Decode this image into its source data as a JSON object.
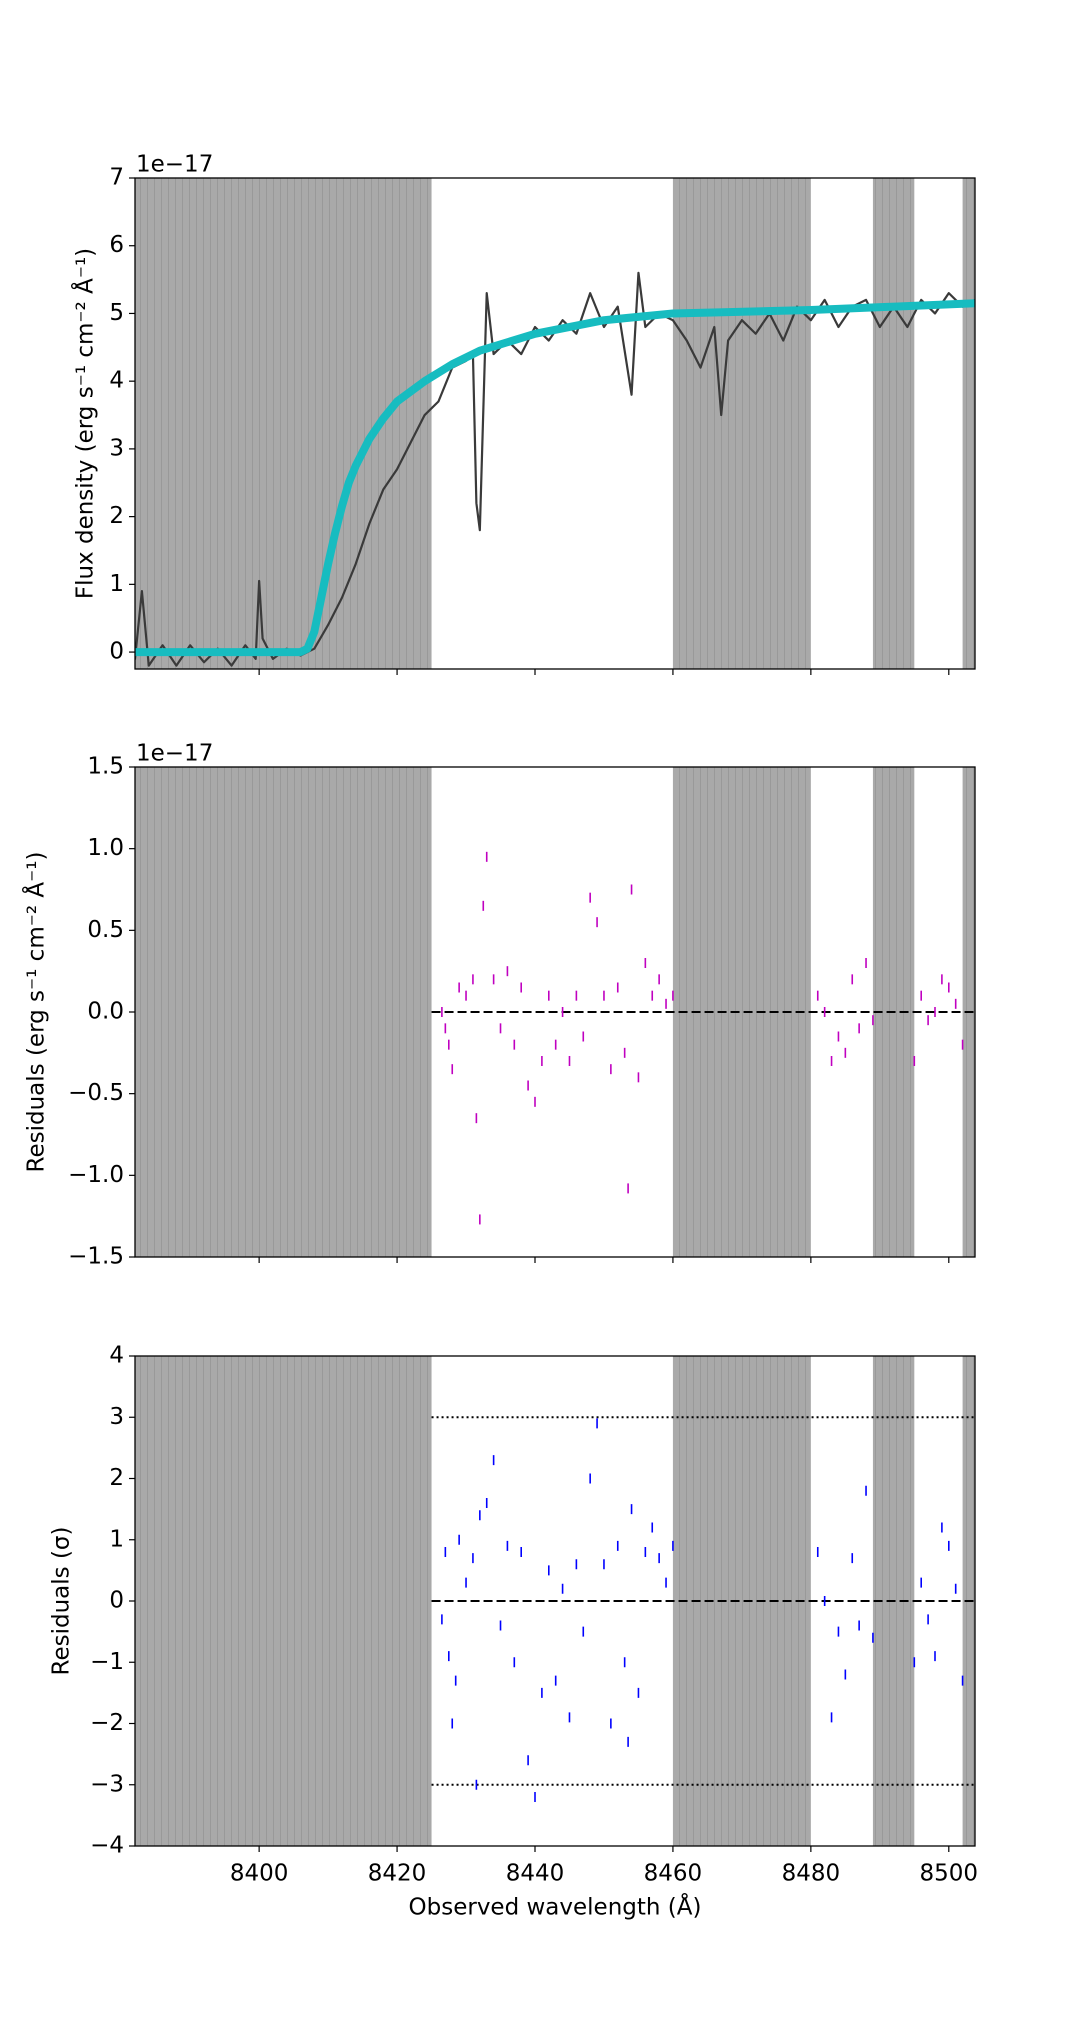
{
  "chart_data": [
    {
      "type": "line",
      "offset_label": "1e−17",
      "ylabel": "Flux density (erg s⁻¹ cm⁻² Å⁻¹)",
      "xlim": [
        8382,
        8503.8
      ],
      "xticks": [
        8400,
        8420,
        8440,
        8460,
        8480,
        8500
      ],
      "ylim": [
        -0.25,
        7
      ],
      "yticks": [
        0,
        1,
        2,
        3,
        4,
        5,
        6,
        7
      ],
      "masked_regions": [
        [
          8382,
          8425
        ],
        [
          8460,
          8480
        ],
        [
          8489,
          8495
        ],
        [
          8502,
          8503.8
        ]
      ],
      "series": [
        {
          "color": "#3a3a3a",
          "x": [
            8382,
            8383,
            8384,
            8386,
            8388,
            8390,
            8392,
            8394,
            8396,
            8398,
            8399.5,
            8400,
            8400.5,
            8402,
            8404,
            8406,
            8408,
            8410,
            8412,
            8414,
            8416,
            8418,
            8420,
            8422,
            8424,
            8426,
            8428,
            8430,
            8431,
            8431.5,
            8432,
            8433,
            8434,
            8436,
            8438,
            8440,
            8442,
            8444,
            8446,
            8448,
            8450,
            8452,
            8454,
            8455,
            8456,
            8458,
            8460,
            8462,
            8464,
            8466,
            8467,
            8468,
            8470,
            8472,
            8474,
            8476,
            8478,
            8480,
            8482,
            8484,
            8486,
            8488,
            8490,
            8492,
            8494,
            8496,
            8498,
            8500,
            8502,
            8503.8
          ],
          "values": [
            -0.1,
            0.9,
            -0.2,
            0.1,
            -0.2,
            0.1,
            -0.15,
            0.05,
            -0.2,
            0.1,
            -0.1,
            1.05,
            0.2,
            -0.1,
            0.05,
            -0.05,
            0.05,
            0.4,
            0.8,
            1.3,
            1.9,
            2.4,
            2.7,
            3.1,
            3.5,
            3.7,
            4.2,
            4.3,
            4.4,
            2.2,
            1.8,
            5.3,
            4.4,
            4.6,
            4.4,
            4.8,
            4.6,
            4.9,
            4.7,
            5.3,
            4.8,
            5.1,
            3.8,
            5.6,
            4.8,
            5.0,
            4.9,
            4.6,
            4.2,
            4.8,
            3.5,
            4.6,
            4.9,
            4.7,
            5.0,
            4.6,
            5.1,
            4.9,
            5.2,
            4.8,
            5.1,
            5.2,
            4.8,
            5.1,
            4.8,
            5.2,
            5.0,
            5.3,
            5.1,
            5.2
          ]
        },
        {
          "color": "#17bcc0",
          "x": [
            8382,
            8406,
            8407,
            8408,
            8409,
            8410,
            8411,
            8412,
            8413,
            8414,
            8416,
            8418,
            8420,
            8424,
            8428,
            8432,
            8440,
            8450,
            8460,
            8480,
            8503.8
          ],
          "values": [
            0,
            0,
            0.05,
            0.3,
            0.8,
            1.3,
            1.75,
            2.15,
            2.5,
            2.75,
            3.15,
            3.45,
            3.7,
            4.0,
            4.25,
            4.45,
            4.7,
            4.9,
            5.0,
            5.05,
            5.15
          ]
        }
      ]
    },
    {
      "type": "scatter",
      "offset_label": "1e−17",
      "ylabel": "Residuals (erg s⁻¹ cm⁻² Å⁻¹)",
      "xlim": [
        8382,
        8503.8
      ],
      "xticks": [
        8400,
        8420,
        8440,
        8460,
        8480,
        8500
      ],
      "ylim": [
        -1.5,
        1.5
      ],
      "yticks": [
        {
          "value": -1.5,
          "label": "−1.5"
        },
        {
          "value": -1,
          "label": "−1.0"
        },
        {
          "value": -0.5,
          "label": "−0.5"
        },
        {
          "value": 0,
          "label": "0.0"
        },
        0.5,
        {
          "value": 1,
          "label": "1.0"
        },
        1.5
      ],
      "masked_regions": [
        [
          8382,
          8425
        ],
        [
          8460,
          8480
        ],
        [
          8489,
          8495
        ],
        [
          8502,
          8503.8
        ]
      ],
      "hlines": [
        {
          "y": 0,
          "style": "dashed"
        }
      ],
      "series": [
        {
          "color": "#c000c0",
          "x": [
            8426.5,
            8427,
            8427.5,
            8428,
            8429,
            8430,
            8431,
            8431.5,
            8432,
            8432.5,
            8433,
            8434,
            8435,
            8436,
            8437,
            8438,
            8439,
            8440,
            8441,
            8442,
            8443,
            8444,
            8445,
            8446,
            8447,
            8448,
            8449,
            8450,
            8451,
            8452,
            8453,
            8453.5,
            8454,
            8455,
            8456,
            8457,
            8458,
            8459,
            8460,
            8481,
            8482,
            8483,
            8484,
            8485,
            8486,
            8487,
            8488,
            8489,
            8495,
            8496,
            8497,
            8498,
            8499,
            8500,
            8501,
            8502
          ],
          "values": [
            0.0,
            -0.1,
            -0.2,
            -0.35,
            0.15,
            0.1,
            0.2,
            -0.65,
            -1.27,
            0.65,
            0.95,
            0.2,
            -0.1,
            0.25,
            -0.2,
            0.15,
            -0.45,
            -0.55,
            -0.3,
            0.1,
            -0.2,
            0.0,
            -0.3,
            0.1,
            -0.15,
            0.7,
            0.55,
            0.1,
            -0.35,
            0.15,
            -0.25,
            -1.08,
            0.75,
            -0.4,
            0.3,
            0.1,
            0.2,
            0.05,
            0.1,
            0.1,
            0.0,
            -0.3,
            -0.15,
            -0.25,
            0.2,
            -0.1,
            0.3,
            -0.05,
            -0.3,
            0.1,
            -0.05,
            0.0,
            0.2,
            0.15,
            0.05,
            -0.2
          ]
        }
      ]
    },
    {
      "type": "scatter",
      "ylabel": "Residuals (σ)",
      "xlabel": "Observed wavelength (Å)",
      "xlim": [
        8382,
        8503.8
      ],
      "xticks": [
        8400,
        8420,
        8440,
        8460,
        8480,
        8500
      ],
      "ylim": [
        -4,
        4
      ],
      "yticks": [
        {
          "value": -4,
          "label": "−4"
        },
        {
          "value": -3,
          "label": "−3"
        },
        {
          "value": -2,
          "label": "−2"
        },
        {
          "value": -1,
          "label": "−1"
        },
        0,
        1,
        2,
        3,
        4
      ],
      "masked_regions": [
        [
          8382,
          8425
        ],
        [
          8460,
          8480
        ],
        [
          8489,
          8495
        ],
        [
          8502,
          8503.8
        ]
      ],
      "hlines": [
        {
          "y": 0,
          "style": "dashed"
        },
        {
          "y": 3,
          "style": "dotted"
        },
        {
          "y": -3,
          "style": "dotted"
        }
      ],
      "series": [
        {
          "color": "#0000ff",
          "x": [
            8426.5,
            8427,
            8427.5,
            8428,
            8428.5,
            8429,
            8430,
            8431,
            8431.5,
            8432,
            8433,
            8434,
            8435,
            8436,
            8437,
            8438,
            8439,
            8440,
            8441,
            8442,
            8443,
            8444,
            8445,
            8446,
            8447,
            8448,
            8449,
            8450,
            8451,
            8452,
            8453,
            8453.5,
            8454,
            8455,
            8456,
            8457,
            8458,
            8459,
            8460,
            8481,
            8482,
            8483,
            8484,
            8485,
            8486,
            8487,
            8488,
            8489,
            8495,
            8496,
            8497,
            8498,
            8499,
            8500,
            8501,
            8502
          ],
          "values": [
            -0.3,
            0.8,
            -0.9,
            -2.0,
            -1.3,
            1.0,
            0.3,
            0.7,
            -3.0,
            1.4,
            1.6,
            2.3,
            -0.4,
            0.9,
            -1.0,
            0.8,
            -2.6,
            -3.2,
            -1.5,
            0.5,
            -1.3,
            0.2,
            -1.9,
            0.6,
            -0.5,
            2.0,
            2.9,
            0.6,
            -2.0,
            0.9,
            -1.0,
            -2.3,
            1.5,
            -1.5,
            0.8,
            1.2,
            0.7,
            0.3,
            0.9,
            0.8,
            0.0,
            -1.9,
            -0.5,
            -1.2,
            0.7,
            -0.4,
            1.8,
            -0.6,
            -1.0,
            0.3,
            -0.3,
            -0.9,
            1.2,
            0.9,
            0.2,
            -1.3
          ]
        }
      ]
    }
  ]
}
